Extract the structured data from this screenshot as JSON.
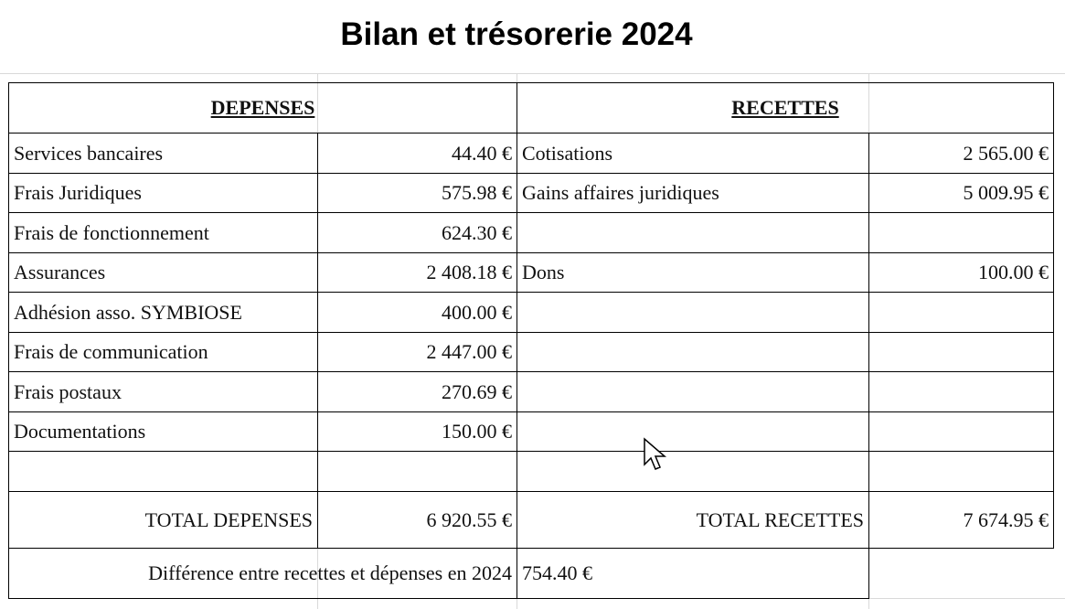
{
  "title": "Bilan et trésorerie 2024",
  "table": {
    "headers": [
      "DEPENSES",
      "RECETTES"
    ],
    "rows": [
      [
        "Services bancaires",
        "44.40 €",
        "Cotisations",
        "2 565.00 €"
      ],
      [
        "Frais Juridiques",
        "575.98 €",
        "Gains affaires juridiques",
        "5 009.95 €"
      ],
      [
        "Frais de fonctionnement",
        "624.30 €",
        null,
        null
      ],
      [
        "Assurances",
        "2 408.18 €",
        "Dons",
        "100.00 €"
      ],
      [
        "Adhésion asso. SYMBIOSE",
        "400.00 €",
        null,
        null
      ],
      [
        "Frais de communication",
        "2 447.00 €",
        null,
        null
      ],
      [
        "Frais postaux",
        "270.69 €",
        null,
        null
      ],
      [
        "Documentations",
        "150.00 €",
        null,
        null
      ],
      [
        null,
        null,
        null,
        null
      ]
    ],
    "totals": [
      "TOTAL DEPENSES",
      "6 920.55 €",
      "TOTAL RECETTES",
      "7 674.95 €"
    ],
    "difference": [
      "Différence entre recettes et dépenses en 2024",
      "754.40 €"
    ]
  }
}
